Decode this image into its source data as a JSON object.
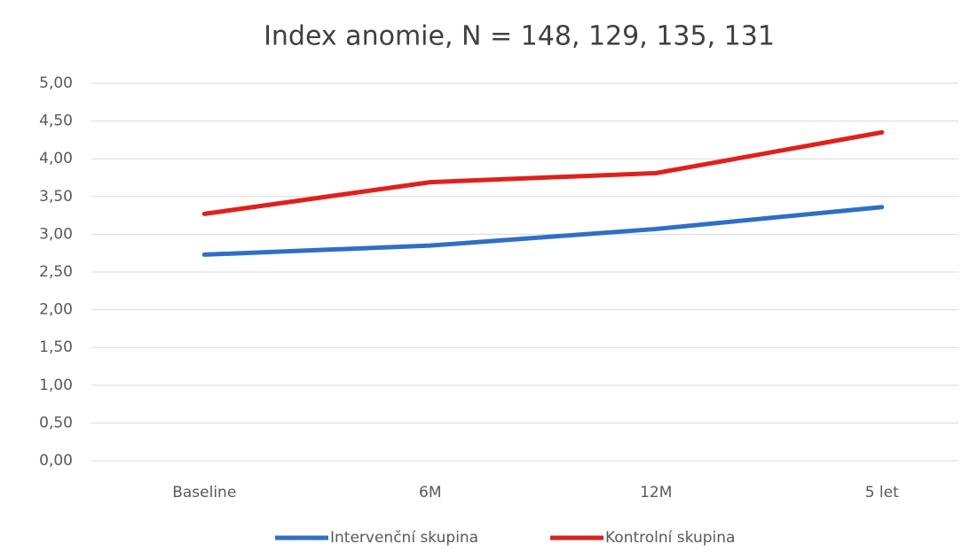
{
  "chart_data": {
    "type": "line",
    "title": "Index anomie, N = 148, 129, 135, 131",
    "categories": [
      "Baseline",
      "6M",
      "12M",
      "5 let"
    ],
    "series": [
      {
        "name": "Intervenční skupina",
        "color": "#2e6fc7",
        "values": [
          2.73,
          2.85,
          3.07,
          3.36
        ]
      },
      {
        "name": "Kontrolní skupina",
        "color": "#e0201b",
        "values": [
          3.27,
          3.69,
          3.81,
          4.35
        ]
      }
    ],
    "ylim": [
      0,
      5
    ],
    "yticks": [
      {
        "value": 0,
        "label": "0,00"
      },
      {
        "value": 0.5,
        "label": "0,50"
      },
      {
        "value": 1,
        "label": "1,00"
      },
      {
        "value": 1.5,
        "label": "1,50"
      },
      {
        "value": 2,
        "label": "2,00"
      },
      {
        "value": 2.5,
        "label": "2,50"
      },
      {
        "value": 3,
        "label": "3,00"
      },
      {
        "value": 3.5,
        "label": "3,50"
      },
      {
        "value": 4,
        "label": "4,00"
      },
      {
        "value": 4.5,
        "label": "4,50"
      },
      {
        "value": 5,
        "label": "5,00"
      }
    ],
    "grid": true,
    "legend": "bottom"
  }
}
